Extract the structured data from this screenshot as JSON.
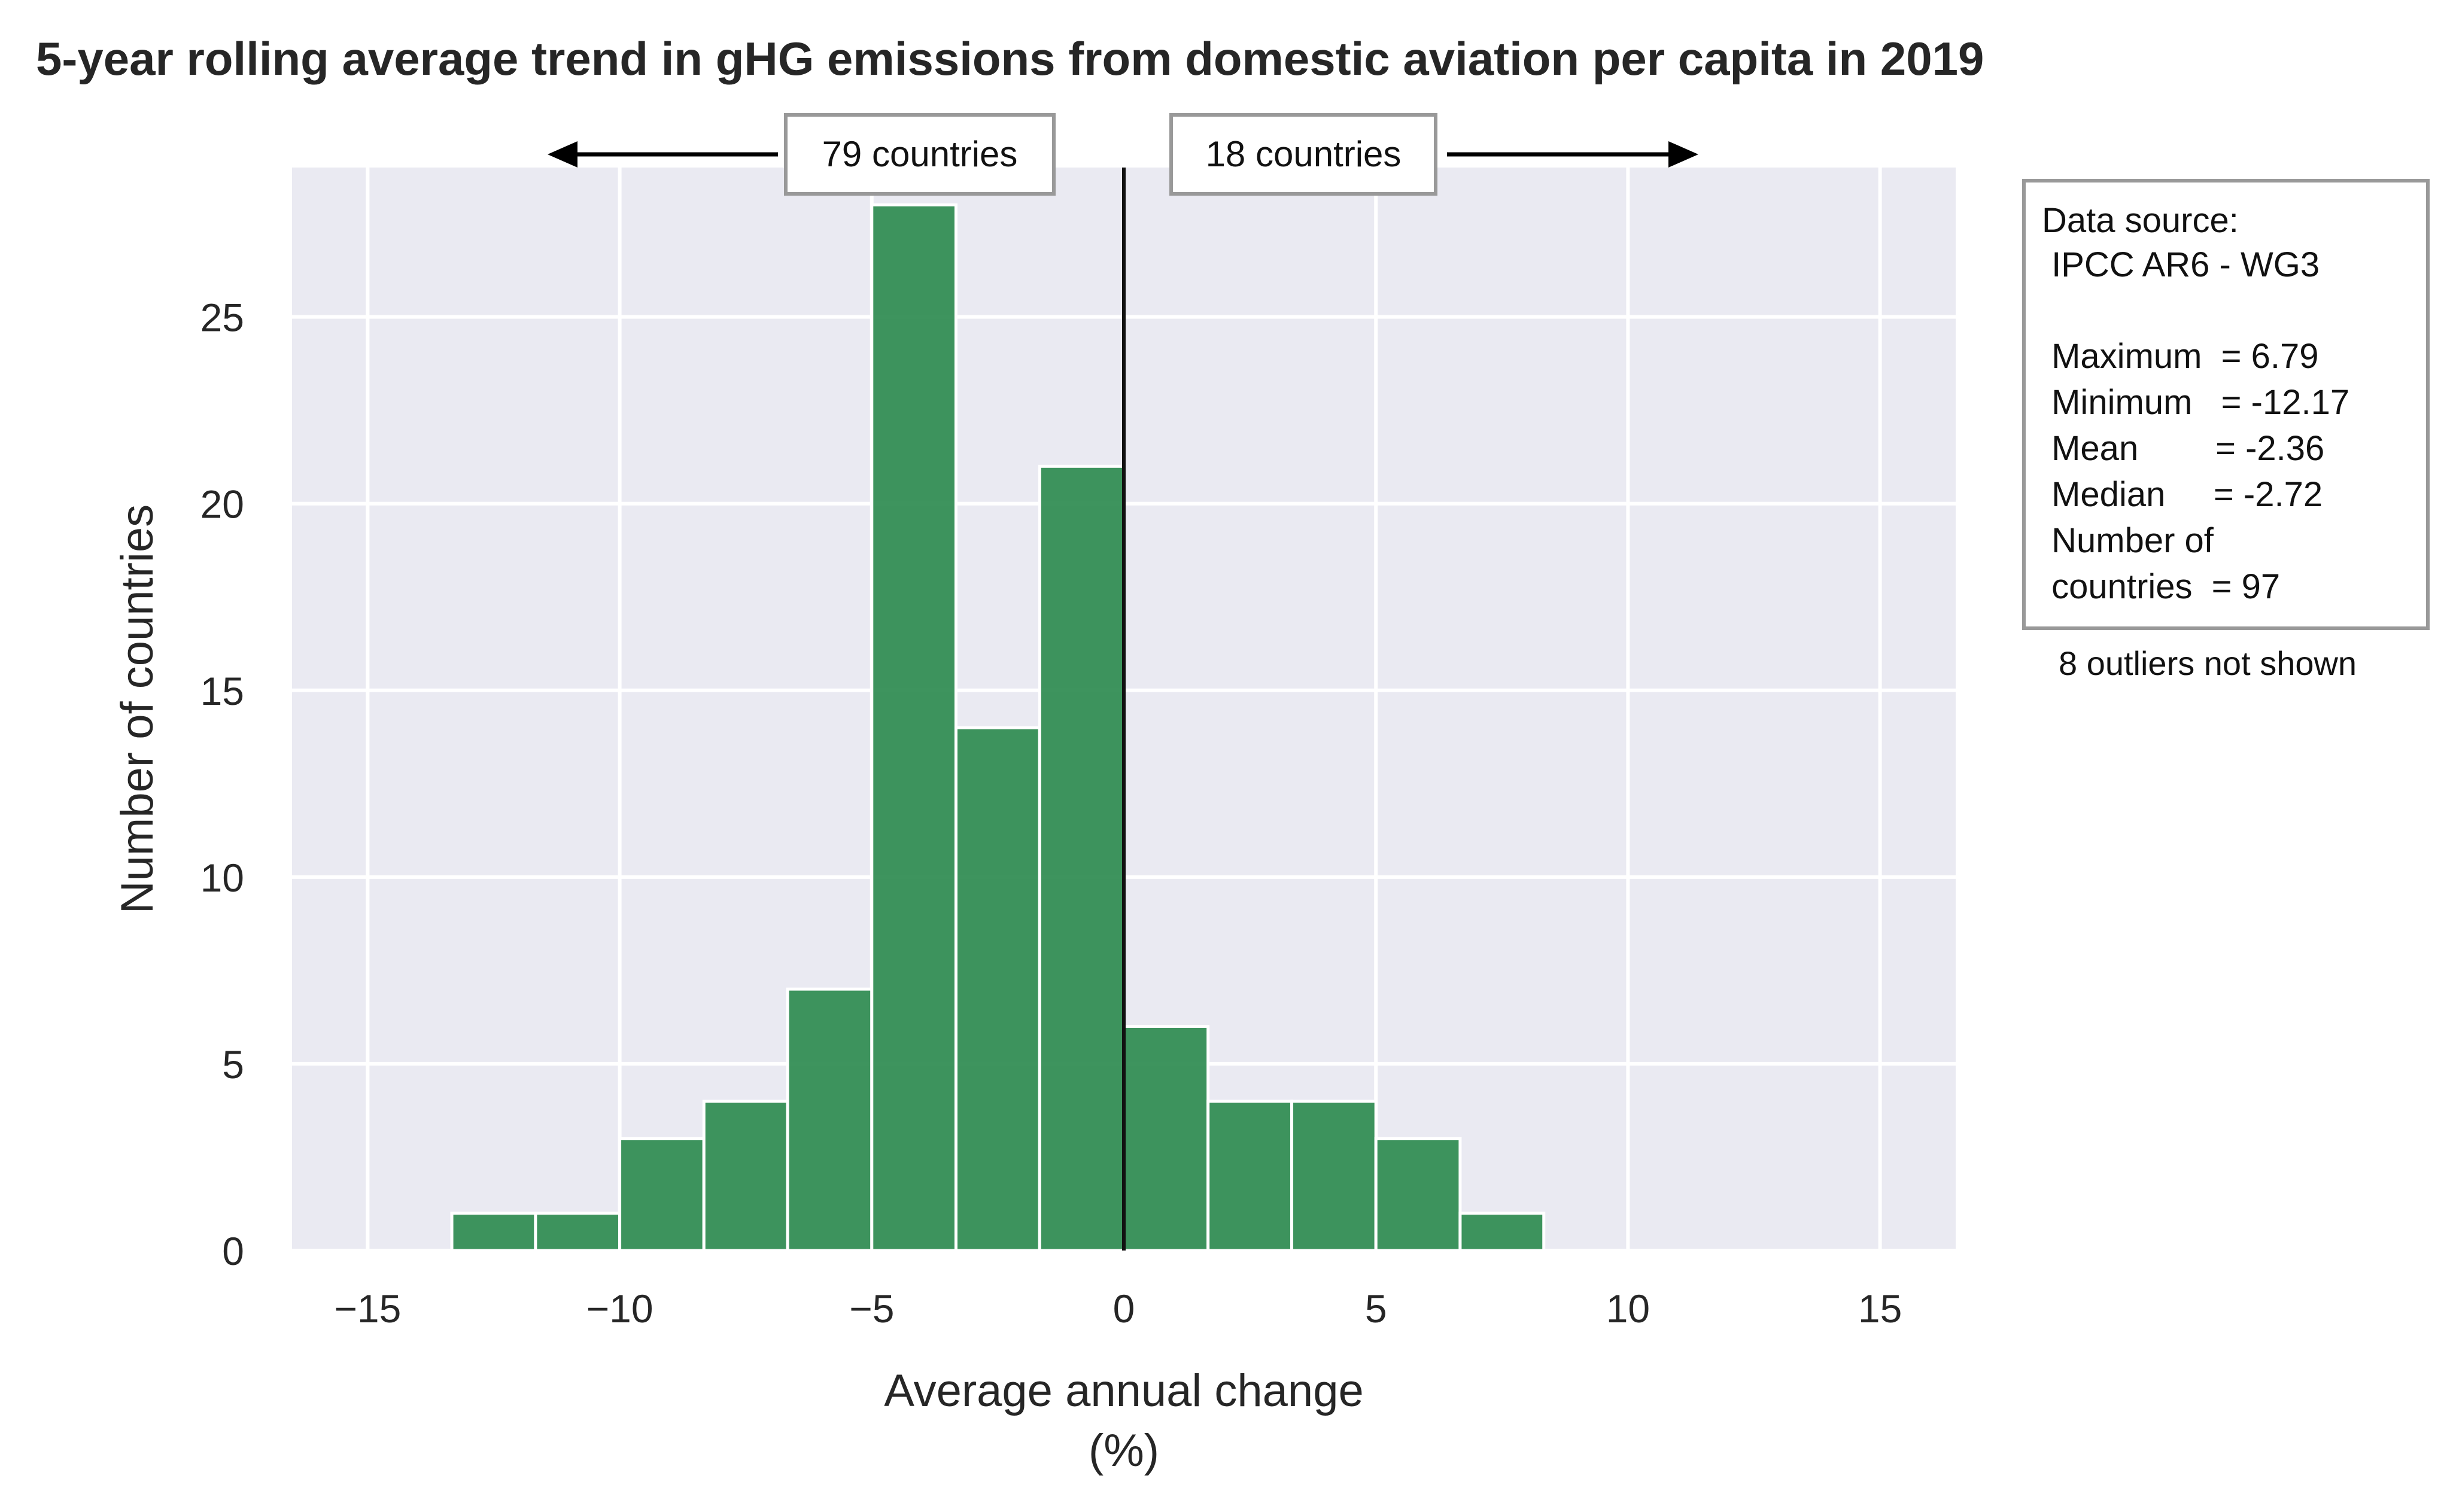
{
  "chart_data": {
    "type": "bar",
    "title": "5-year rolling average trend in gHG emissions from domestic aviation per capita in 2019",
    "xlabel": [
      "Average annual change",
      "(%)"
    ],
    "ylabel": "Number of countries",
    "xlim": [
      -16.5,
      16.5
    ],
    "ylim": [
      0,
      29
    ],
    "xticks": [
      -15,
      -10,
      -5,
      0,
      5,
      10,
      15
    ],
    "xtick_labels": [
      "−15",
      "−10",
      "−5",
      "0",
      "5",
      "10",
      "15"
    ],
    "yticks": [
      0,
      5,
      10,
      15,
      20,
      25
    ],
    "ytick_labels": [
      "0",
      "5",
      "10",
      "15",
      "20",
      "25"
    ],
    "grid": true,
    "bar_color": "#2e8b50",
    "background_color": "#eaeaf2",
    "bins": [
      {
        "start": -13.33,
        "end": -11.67,
        "count": 1
      },
      {
        "start": -11.67,
        "end": -10.0,
        "count": 1
      },
      {
        "start": -10.0,
        "end": -8.33,
        "count": 3
      },
      {
        "start": -8.33,
        "end": -6.67,
        "count": 4
      },
      {
        "start": -6.67,
        "end": -5.0,
        "count": 7
      },
      {
        "start": -5.0,
        "end": -3.33,
        "count": 28
      },
      {
        "start": -3.33,
        "end": -1.67,
        "count": 14
      },
      {
        "start": -1.67,
        "end": 0.0,
        "count": 21
      },
      {
        "start": 0.0,
        "end": 1.67,
        "count": 6
      },
      {
        "start": 1.67,
        "end": 3.33,
        "count": 4
      },
      {
        "start": 3.33,
        "end": 5.0,
        "count": 4
      },
      {
        "start": 5.0,
        "end": 6.67,
        "count": 3
      },
      {
        "start": 6.67,
        "end": 8.33,
        "count": 1
      }
    ],
    "zero_line_x": 0,
    "annotations": {
      "left_count": "79 countries",
      "right_count": "18 countries"
    }
  },
  "stats_box": {
    "lines": [
      "Data source:",
      " IPCC AR6 - WG3",
      "",
      " Maximum  = 6.79",
      " Minimum   = -12.17",
      " Mean        = -2.36",
      " Median     = -2.72",
      " Number of",
      " countries  = 97"
    ],
    "footnote": "8 outliers not shown"
  }
}
